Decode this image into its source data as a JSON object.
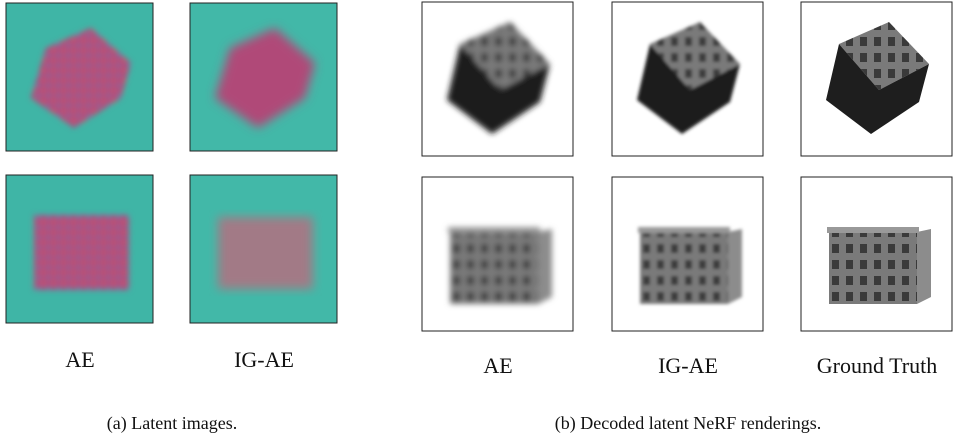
{
  "panel_a": {
    "labels": [
      "AE",
      "IG-AE"
    ],
    "caption": "(a) Latent images."
  },
  "panel_b": {
    "labels": [
      "AE",
      "IG-AE",
      "Ground Truth"
    ],
    "caption": "(b) Decoded latent NeRF renderings."
  }
}
